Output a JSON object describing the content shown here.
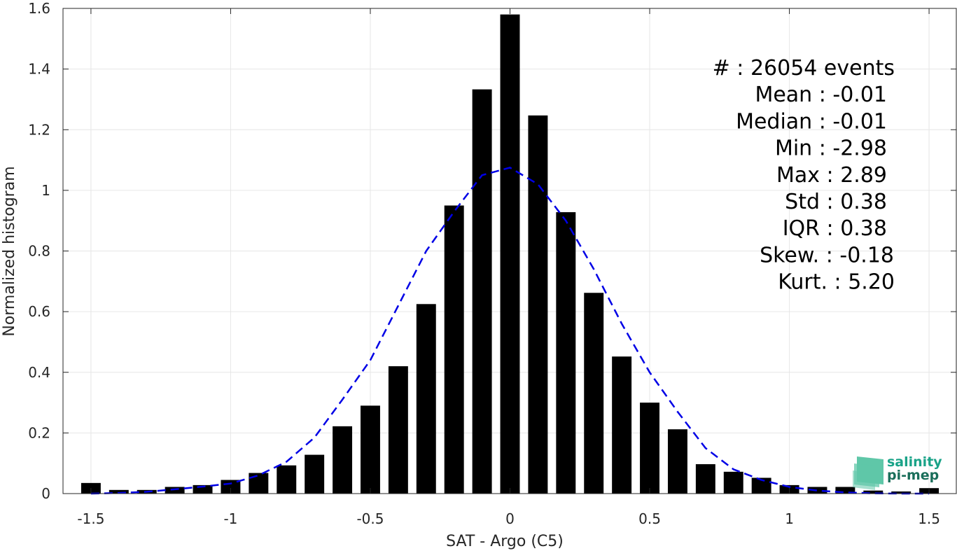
{
  "chart_data": {
    "type": "bar",
    "xlabel": "SAT - Argo (C5)",
    "ylabel": "Normalized histogram",
    "xlim": [
      -1.6,
      1.6
    ],
    "ylim": [
      0,
      1.6
    ],
    "grid": true,
    "x_ticks": [
      -1.5,
      -1,
      -0.5,
      0,
      0.5,
      1,
      1.5
    ],
    "x_tick_labels": [
      "-1.5",
      "-1",
      "-0.5",
      "0",
      "0.5",
      "1",
      "1.5"
    ],
    "y_ticks": [
      0,
      0.2,
      0.4,
      0.6,
      0.8,
      1,
      1.2,
      1.4,
      1.6
    ],
    "y_tick_labels": [
      "0",
      "0.2",
      "0.4",
      "0.6",
      "0.8",
      "1",
      "1.2",
      "1.4",
      "1.6"
    ],
    "bin_width": 0.1,
    "bars": {
      "color": "#000000",
      "x": [
        -1.5,
        -1.4,
        -1.3,
        -1.2,
        -1.1,
        -1.0,
        -0.9,
        -0.8,
        -0.7,
        -0.6,
        -0.5,
        -0.4,
        -0.3,
        -0.2,
        -0.1,
        0.0,
        0.1,
        0.2,
        0.3,
        0.4,
        0.5,
        0.6,
        0.7,
        0.8,
        0.9,
        1.0,
        1.1,
        1.2,
        1.3,
        1.4,
        1.5
      ],
      "values": [
        0.035,
        0.012,
        0.012,
        0.022,
        0.028,
        0.045,
        0.068,
        0.093,
        0.128,
        0.222,
        0.29,
        0.42,
        0.625,
        0.95,
        1.333,
        1.58,
        1.247,
        0.928,
        0.662,
        0.452,
        0.3,
        0.212,
        0.097,
        0.072,
        0.052,
        0.028,
        0.022,
        0.022,
        0.01,
        0.007,
        0.018
      ]
    },
    "fit": {
      "style": "dashed",
      "color": "#0000e6",
      "x": [
        -1.5,
        -1.4,
        -1.3,
        -1.2,
        -1.1,
        -1.0,
        -0.9,
        -0.8,
        -0.7,
        -0.6,
        -0.5,
        -0.4,
        -0.3,
        -0.2,
        -0.1,
        0.0,
        0.1,
        0.2,
        0.3,
        0.4,
        0.5,
        0.6,
        0.7,
        0.8,
        0.9,
        1.0,
        1.1,
        1.2,
        1.3,
        1.4,
        1.5
      ],
      "values": [
        0.0,
        0.002,
        0.006,
        0.014,
        0.023,
        0.033,
        0.06,
        0.105,
        0.185,
        0.31,
        0.44,
        0.62,
        0.8,
        0.93,
        1.05,
        1.075,
        1.02,
        0.9,
        0.74,
        0.56,
        0.4,
        0.27,
        0.15,
        0.08,
        0.045,
        0.022,
        0.01,
        0.004,
        0.001,
        0.0,
        0.0
      ]
    },
    "annotations": [
      "#  : 26054 events",
      "Mean : -0.01",
      "Median : -0.01",
      "Min : -2.98",
      "Max : 2.89",
      "Std : 0.38",
      "IQR : 0.38",
      "Skew. : -0.18",
      "Kurt. : 5.20"
    ]
  },
  "logo": {
    "line1": "salinity",
    "line2": "pi-mep",
    "colors": {
      "line1": "#1aa388",
      "line2": "#1a6e5a",
      "mark": "#5fc7a8"
    }
  }
}
